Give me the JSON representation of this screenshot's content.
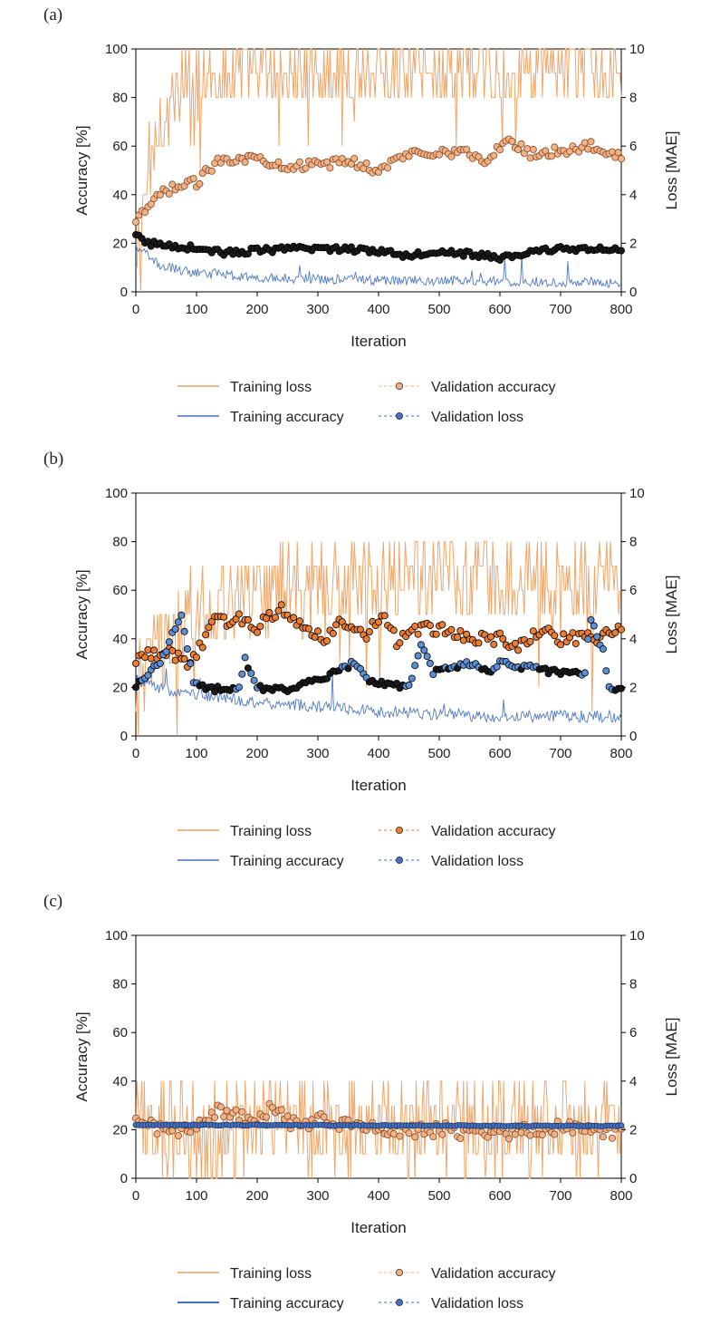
{
  "colors": {
    "training_loss": "#f0a060",
    "training_accuracy": "#4472c4",
    "val_accuracy_fill": "#ed7d31",
    "val_loss_fill": "#4472c4",
    "axis": "#000000"
  },
  "chart_data": [
    {
      "type": "line",
      "panel_label": "(a)",
      "xlabel": "Iteration",
      "ylabel_left": "Accuracy [%]",
      "ylabel_right": "Loss [MAE]",
      "xlim": [
        0,
        800
      ],
      "ylim_left": [
        0,
        100
      ],
      "ylim_right": [
        0,
        10
      ],
      "xticks": [
        "0",
        "100",
        "200",
        "300",
        "400",
        "500",
        "600",
        "700",
        "800"
      ],
      "yticks_left": [
        "0",
        "20",
        "40",
        "60",
        "80",
        "100"
      ],
      "yticks_right": [
        "0",
        "2",
        "4",
        "6",
        "8",
        "10"
      ],
      "legend": [
        "Training loss",
        "Validation accuracy",
        "Training accuracy",
        "Validation loss"
      ],
      "series": [
        {
          "name": "Training loss",
          "axis": "left",
          "style": "thin-orange",
          "noise": "a_train_acc",
          "keyframes": [
            [
              0,
              10
            ],
            [
              20,
              50
            ],
            [
              40,
              70
            ],
            [
              80,
              85
            ],
            [
              150,
              90
            ],
            [
              300,
              90
            ],
            [
              500,
              92
            ],
            [
              800,
              92
            ]
          ],
          "amp": 15,
          "clipmax": 100
        },
        {
          "name": "Training accuracy",
          "axis": "right",
          "style": "thin-blue",
          "keyframes": [
            [
              0,
              1.8
            ],
            [
              40,
              1.0
            ],
            [
              100,
              0.7
            ],
            [
              200,
              0.5
            ],
            [
              400,
              0.4
            ],
            [
              800,
              0.3
            ]
          ],
          "amp": 0.4,
          "clipmax": 10
        },
        {
          "name": "Validation accuracy",
          "axis": "left",
          "style": "marker-orange-light",
          "keyframes": [
            [
              0,
              28
            ],
            [
              20,
              35
            ],
            [
              50,
              42
            ],
            [
              100,
              45
            ],
            [
              140,
              55
            ],
            [
              200,
              55
            ],
            [
              250,
              52
            ],
            [
              300,
              52
            ],
            [
              350,
              54
            ],
            [
              400,
              50
            ],
            [
              450,
              57
            ],
            [
              500,
              58
            ],
            [
              550,
              57
            ],
            [
              580,
              53
            ],
            [
              610,
              63
            ],
            [
              650,
              57
            ],
            [
              700,
              58
            ],
            [
              750,
              60
            ],
            [
              800,
              56
            ]
          ],
          "amp": 2
        },
        {
          "name": "Validation loss",
          "axis": "right",
          "style": "marker-black",
          "keyframes": [
            [
              0,
              2.3
            ],
            [
              20,
              2.0
            ],
            [
              100,
              1.8
            ],
            [
              150,
              1.6
            ],
            [
              200,
              1.7
            ],
            [
              300,
              1.8
            ],
            [
              400,
              1.7
            ],
            [
              450,
              1.5
            ],
            [
              500,
              1.7
            ],
            [
              600,
              1.4
            ],
            [
              700,
              1.8
            ],
            [
              800,
              1.7
            ]
          ],
          "amp": 0.12
        }
      ]
    },
    {
      "type": "line",
      "panel_label": "(b)",
      "xlabel": "Iteration",
      "ylabel_left": "Accuracy [%]",
      "ylabel_right": "Loss [MAE]",
      "xlim": [
        0,
        800
      ],
      "ylim_left": [
        0,
        100
      ],
      "ylim_right": [
        0,
        10
      ],
      "xticks": [
        "0",
        "100",
        "200",
        "300",
        "400",
        "500",
        "600",
        "700",
        "800"
      ],
      "yticks_left": [
        "0",
        "20",
        "40",
        "60",
        "80",
        "100"
      ],
      "yticks_right": [
        "0",
        "2",
        "4",
        "6",
        "8",
        "10"
      ],
      "legend": [
        "Training loss",
        "Validation accuracy",
        "Training accuracy",
        "Validation loss"
      ],
      "series": [
        {
          "name": "Training loss",
          "axis": "left",
          "style": "thin-orange",
          "keyframes": [
            [
              0,
              25
            ],
            [
              50,
              40
            ],
            [
              100,
              50
            ],
            [
              200,
              60
            ],
            [
              300,
              62
            ],
            [
              400,
              62
            ],
            [
              500,
              65
            ],
            [
              600,
              62
            ],
            [
              700,
              62
            ],
            [
              800,
              62
            ]
          ],
          "amp": 18,
          "clipmax": 100
        },
        {
          "name": "Training accuracy",
          "axis": "right",
          "style": "thin-blue",
          "keyframes": [
            [
              0,
              2.2
            ],
            [
              50,
              1.8
            ],
            [
              100,
              1.6
            ],
            [
              200,
              1.3
            ],
            [
              300,
              1.1
            ],
            [
              400,
              0.9
            ],
            [
              500,
              0.8
            ],
            [
              600,
              0.7
            ],
            [
              800,
              0.7
            ]
          ],
          "amp": 0.5,
          "clipmax": 10
        },
        {
          "name": "Validation accuracy",
          "axis": "left",
          "style": "marker-orange-dark",
          "keyframes": [
            [
              0,
              32
            ],
            [
              50,
              35
            ],
            [
              90,
              30
            ],
            [
              130,
              47
            ],
            [
              170,
              48
            ],
            [
              200,
              45
            ],
            [
              240,
              52
            ],
            [
              280,
              45
            ],
            [
              310,
              40
            ],
            [
              340,
              48
            ],
            [
              380,
              42
            ],
            [
              410,
              50
            ],
            [
              430,
              38
            ],
            [
              470,
              45
            ],
            [
              500,
              44
            ],
            [
              550,
              40
            ],
            [
              600,
              40
            ],
            [
              620,
              36
            ],
            [
              670,
              44
            ],
            [
              700,
              40
            ],
            [
              750,
              40
            ],
            [
              790,
              43
            ],
            [
              800,
              44
            ]
          ],
          "amp": 2.5
        },
        {
          "name": "Validation loss",
          "axis": "right",
          "style": "marker-blue-black",
          "keyframes": [
            [
              0,
              2.1
            ],
            [
              40,
              3.0
            ],
            [
              75,
              5.0
            ],
            [
              95,
              2.3
            ],
            [
              120,
              1.9
            ],
            [
              170,
              2.0
            ],
            [
              180,
              3.2
            ],
            [
              200,
              2.0
            ],
            [
              250,
              1.9
            ],
            [
              300,
              2.3
            ],
            [
              360,
              3.0
            ],
            [
              380,
              2.3
            ],
            [
              450,
              2.0
            ],
            [
              470,
              3.8
            ],
            [
              490,
              2.6
            ],
            [
              550,
              3.0
            ],
            [
              580,
              2.6
            ],
            [
              600,
              3.0
            ],
            [
              650,
              2.8
            ],
            [
              700,
              2.6
            ],
            [
              740,
              2.6
            ],
            [
              748,
              5.0
            ],
            [
              770,
              3.5
            ],
            [
              780,
              2.0
            ],
            [
              800,
              1.9
            ]
          ],
          "amp": 0.12
        }
      ]
    },
    {
      "type": "line",
      "panel_label": "(c)",
      "xlabel": "Iteration",
      "ylabel_left": "Accuracy [%]",
      "ylabel_right": "Loss [MAE]",
      "xlim": [
        0,
        800
      ],
      "ylim_left": [
        0,
        100
      ],
      "ylim_right": [
        0,
        10
      ],
      "xticks": [
        "0",
        "100",
        "200",
        "300",
        "400",
        "500",
        "600",
        "700",
        "800"
      ],
      "yticks_left": [
        "0",
        "20",
        "40",
        "60",
        "80",
        "100"
      ],
      "yticks_right": [
        "0",
        "2",
        "4",
        "6",
        "8",
        "10"
      ],
      "legend": [
        "Training loss",
        "Validation accuracy",
        "Training accuracy",
        "Validation loss"
      ],
      "series": [
        {
          "name": "Training loss",
          "axis": "left",
          "style": "thin-orange",
          "keyframes": [
            [
              0,
              22
            ],
            [
              800,
              22
            ]
          ],
          "amp": 20,
          "clipmax": 100
        },
        {
          "name": "Training accuracy",
          "axis": "right",
          "style": "thin-blue-hidden",
          "keyframes": [
            [
              0,
              2.2
            ],
            [
              800,
              2.2
            ]
          ],
          "amp": 0.02,
          "clipmax": 10
        },
        {
          "name": "Validation accuracy",
          "axis": "left",
          "style": "marker-orange-light",
          "keyframes": [
            [
              0,
              25
            ],
            [
              50,
              18
            ],
            [
              100,
              22
            ],
            [
              140,
              28
            ],
            [
              200,
              22
            ],
            [
              225,
              30
            ],
            [
              260,
              22
            ],
            [
              300,
              24
            ],
            [
              400,
              20
            ],
            [
              500,
              20
            ],
            [
              600,
              18
            ],
            [
              700,
              21
            ],
            [
              800,
              19
            ]
          ],
          "amp": 3
        },
        {
          "name": "Validation loss",
          "axis": "right",
          "style": "marker-blue-small",
          "keyframes": [
            [
              0,
              2.2
            ],
            [
              800,
              2.15
            ]
          ],
          "amp": 0.02
        }
      ]
    }
  ]
}
